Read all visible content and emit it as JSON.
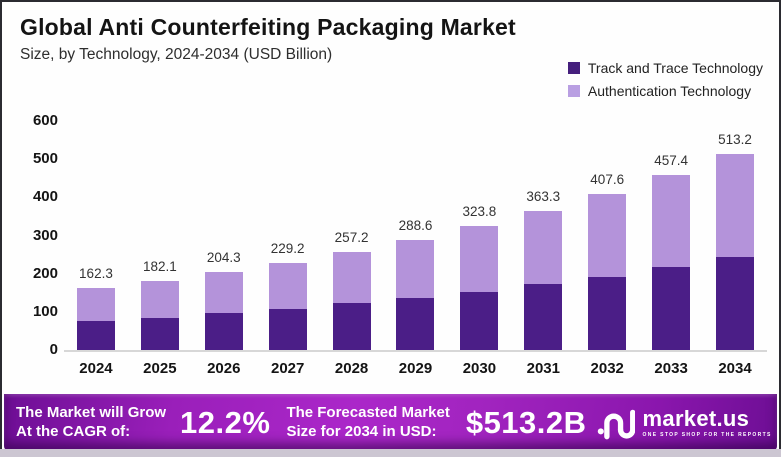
{
  "header": {
    "title": "Global Anti Counterfeiting Packaging Market",
    "subtitle": "Size, by Technology, 2024-2034 (USD Billion)"
  },
  "legend": [
    {
      "label": "Track and Trace Technology",
      "color": "#451f7d"
    },
    {
      "label": "Authentication Technology",
      "color": "#b99fe2"
    }
  ],
  "chart_data": {
    "type": "bar",
    "stacked": true,
    "title": "Global Anti Counterfeiting Packaging Market",
    "subtitle": "Size, by Technology, 2024-2034 (USD Billion)",
    "xlabel": "",
    "ylabel": "",
    "categories": [
      "2024",
      "2025",
      "2026",
      "2027",
      "2028",
      "2029",
      "2030",
      "2031",
      "2032",
      "2033",
      "2034"
    ],
    "series": [
      {
        "name": "Track and Trace Technology",
        "color": "#4b1e87",
        "values": [
          76,
          85,
          96,
          108,
          122,
          137,
          153,
          172,
          192,
          218,
          245
        ],
        "note": "estimated from bar heights; only totals are labeled"
      },
      {
        "name": "Authentication Technology",
        "color": "#b493da",
        "values": [
          86.3,
          97.1,
          108.3,
          121.2,
          135.2,
          151.6,
          170.8,
          191.3,
          215.6,
          239.4,
          268.2
        ],
        "note": "estimated as total minus track-and-trace"
      }
    ],
    "totals": [
      162.3,
      182.1,
      204.3,
      229.2,
      257.2,
      288.6,
      323.8,
      363.3,
      407.6,
      457.4,
      513.2
    ],
    "yticks": [
      0,
      100,
      200,
      300,
      400,
      500,
      600
    ],
    "ylim": [
      0,
      600
    ],
    "grid": false,
    "legend_position": "top-right",
    "axis_line_color": "#d7d7d7"
  },
  "banner": {
    "cagr_label_line1": "The Market will Grow",
    "cagr_label_line2": "At the CAGR of:",
    "cagr_value": "12.2%",
    "forecast_label_line1": "The Forecasted Market",
    "forecast_label_line2": "Size for 2034 in USD:",
    "forecast_value": "$513.2B",
    "brand": "market.us",
    "brand_tagline": "ONE STOP SHOP FOR THE REPORTS",
    "background_accent": "#a826c6"
  }
}
